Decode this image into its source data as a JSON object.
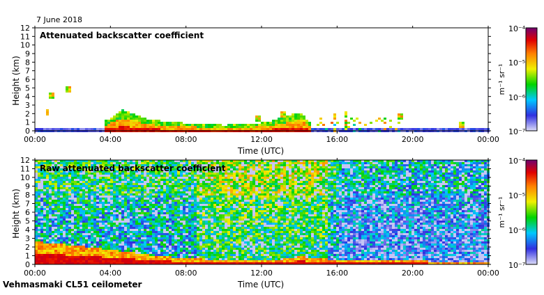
{
  "date_label": "7 June 2018",
  "footer_label": "Vehmasmaki CL51 ceilometer",
  "colorbar_unit": "m⁻¹ sr⁻¹",
  "colorbar_scale": {
    "top": "10⁻⁴",
    "t2": "10⁻⁵",
    "t3": "10⁻⁶",
    "bottom": "10⁻⁷"
  },
  "chart_data": [
    {
      "type": "heatmap",
      "title": "Attenuated backscatter coefficient",
      "xlabel": "Time (UTC)",
      "ylabel": "Height (km)",
      "xlim": [
        "00:00",
        "00:00 (+1 day)"
      ],
      "x_ticks": [
        "00:00",
        "04:00",
        "08:00",
        "12:00",
        "16:00",
        "20:00",
        "00:00"
      ],
      "ylim": [
        0,
        12
      ],
      "y_ticks": [
        "0",
        "1",
        "2",
        "3",
        "4",
        "5",
        "6",
        "7",
        "8",
        "9",
        "10",
        "11",
        "12"
      ],
      "colorbar": {
        "scale": "log",
        "range": [
          1e-07,
          0.0001
        ],
        "ticks": [
          "1e-4",
          "1e-5",
          "1e-6",
          "1e-7"
        ]
      },
      "layers": {
        "surface_layer_km": [
          [
            0,
            0.35
          ],
          [
            4,
            0.35
          ],
          [
            5,
            0.3
          ],
          [
            8,
            0.35
          ],
          [
            12,
            0.3
          ],
          [
            16,
            0.35
          ],
          [
            20,
            0.35
          ],
          [
            24,
            0.35
          ]
        ],
        "boundary_layer_top_km": [
          [
            3.7,
            1.3
          ],
          [
            4.5,
            2.6
          ],
          [
            5,
            2.2
          ],
          [
            6,
            1.4
          ],
          [
            8,
            1.0
          ],
          [
            10,
            0.8
          ],
          [
            11.5,
            0.9
          ],
          [
            12.5,
            1.3
          ],
          [
            13.5,
            2.0
          ],
          [
            14,
            2.3
          ],
          [
            14.5,
            1.0
          ]
        ],
        "isolated_echoes_km": [
          [
            0.6,
            2.2
          ],
          [
            0.8,
            4.3
          ],
          [
            1.7,
            4.9
          ],
          [
            11.7,
            1.5
          ],
          [
            13.1,
            2.0
          ],
          [
            15.8,
            1.8
          ],
          [
            16.4,
            2.0
          ],
          [
            19.3,
            1.7
          ],
          [
            22.5,
            0.9
          ]
        ]
      }
    },
    {
      "type": "heatmap",
      "title": "Raw attenuated backscatter coefficient",
      "xlabel": "Time (UTC)",
      "ylabel": "Height (km)",
      "xlim": [
        "00:00",
        "00:00 (+1 day)"
      ],
      "x_ticks": [
        "00:00",
        "04:00",
        "08:00",
        "12:00",
        "16:00",
        "20:00",
        "00:00"
      ],
      "ylim": [
        0,
        12
      ],
      "y_ticks": [
        "0",
        "1",
        "2",
        "3",
        "4",
        "5",
        "6",
        "7",
        "8",
        "9",
        "10",
        "11",
        "12"
      ],
      "colorbar": {
        "scale": "log",
        "range": [
          1e-07,
          0.0001
        ],
        "ticks": [
          "1e-4",
          "1e-5",
          "1e-6",
          "1e-7"
        ]
      },
      "layers": {
        "noise_band": "full height, strongest 09:00-15:00 and above 8 km",
        "boundary_layer_top_km": [
          [
            0,
            2.7
          ],
          [
            2,
            2.3
          ],
          [
            4,
            1.8
          ],
          [
            6,
            1.2
          ],
          [
            8,
            0.8
          ],
          [
            10,
            0.6
          ],
          [
            12,
            0.5
          ],
          [
            13,
            0.7
          ],
          [
            14,
            1.0
          ],
          [
            16,
            0.6
          ],
          [
            24,
            0.4
          ]
        ]
      }
    }
  ]
}
